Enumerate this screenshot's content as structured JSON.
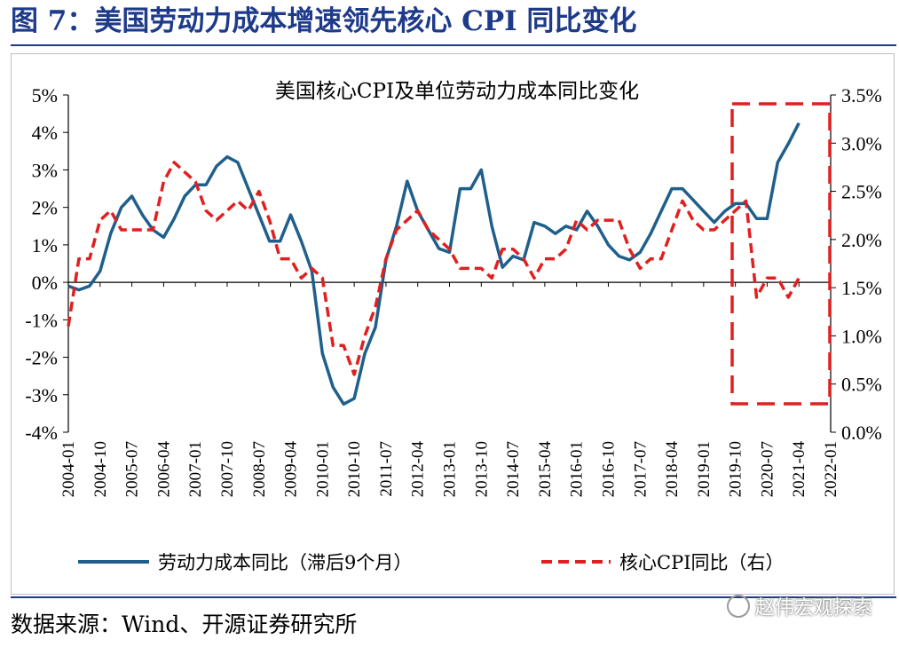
{
  "figure": {
    "title": "图 7：美国劳动力成本增速领先核心 CPI 同比变化",
    "source": "数据来源：Wind、开源证券研究所",
    "watermark": "赵伟宏观探索"
  },
  "chart_data": {
    "type": "line",
    "title": "美国核心CPI及单位劳动力成本同比变化",
    "x_tick_labels": [
      "2004-01",
      "2004-10",
      "2005-07",
      "2006-04",
      "2007-01",
      "2007-10",
      "2008-07",
      "2009-04",
      "2010-01",
      "2010-10",
      "2011-07",
      "2012-04",
      "2013-01",
      "2013-10",
      "2014-07",
      "2015-04",
      "2016-01",
      "2016-10",
      "2017-07",
      "2018-04",
      "2019-01",
      "2019-10",
      "2020-07",
      "2021-04",
      "2022-01"
    ],
    "left_axis": {
      "ylim": [
        -4,
        5
      ],
      "ticks": [
        "-4%",
        "-3%",
        "-2%",
        "-1%",
        "0%",
        "1%",
        "2%",
        "3%",
        "4%",
        "5%"
      ]
    },
    "right_axis": {
      "ylim": [
        0.0,
        3.5
      ],
      "ticks": [
        "0.0%",
        "0.5%",
        "1.0%",
        "1.5%",
        "2.0%",
        "2.5%",
        "3.0%",
        "3.5%"
      ]
    },
    "legend_placement": "bottom",
    "annotation": "red dashed box around 2019-10 to 2021-04",
    "series": [
      {
        "name": "劳动力成本同比（滞后9个月）",
        "axis": "left",
        "color": "#1f5f8b",
        "style": "solid",
        "x": [
          "2004-01",
          "2004-04",
          "2004-07",
          "2004-10",
          "2005-01",
          "2005-04",
          "2005-07",
          "2005-10",
          "2006-01",
          "2006-04",
          "2006-07",
          "2006-10",
          "2007-01",
          "2007-04",
          "2007-07",
          "2007-10",
          "2008-01",
          "2008-04",
          "2008-07",
          "2008-10",
          "2009-01",
          "2009-04",
          "2009-07",
          "2009-10",
          "2010-01",
          "2010-04",
          "2010-07",
          "2010-10",
          "2011-01",
          "2011-04",
          "2011-07",
          "2011-10",
          "2012-01",
          "2012-04",
          "2012-07",
          "2012-10",
          "2013-01",
          "2013-04",
          "2013-07",
          "2013-10",
          "2014-01",
          "2014-04",
          "2014-07",
          "2014-10",
          "2015-01",
          "2015-04",
          "2015-07",
          "2015-10",
          "2016-01",
          "2016-04",
          "2016-07",
          "2016-10",
          "2017-01",
          "2017-04",
          "2017-07",
          "2017-10",
          "2018-01",
          "2018-04",
          "2018-07",
          "2018-10",
          "2019-01",
          "2019-04",
          "2019-07",
          "2019-10",
          "2020-01",
          "2020-04",
          "2020-07",
          "2020-10",
          "2021-01",
          "2021-04"
        ],
        "values": [
          -0.1,
          -0.2,
          -0.1,
          0.3,
          1.3,
          2.0,
          2.3,
          1.8,
          1.4,
          1.2,
          1.7,
          2.3,
          2.6,
          2.6,
          3.1,
          3.35,
          3.2,
          2.5,
          1.8,
          1.1,
          1.1,
          1.8,
          1.1,
          0.3,
          -1.9,
          -2.8,
          -3.25,
          -3.1,
          -1.9,
          -1.2,
          0.6,
          1.5,
          2.7,
          1.9,
          1.4,
          0.9,
          0.8,
          2.5,
          2.5,
          3.0,
          1.5,
          0.4,
          0.7,
          0.6,
          1.6,
          1.5,
          1.3,
          1.5,
          1.4,
          1.9,
          1.5,
          1.0,
          0.7,
          0.6,
          0.8,
          1.3,
          1.9,
          2.5,
          2.5,
          2.2,
          1.9,
          1.6,
          1.9,
          2.1,
          2.1,
          1.7,
          1.7,
          3.2,
          3.7,
          4.25
        ]
      },
      {
        "name": "核心CPI同比（右）",
        "axis": "right",
        "color": "#e02020",
        "style": "dashed",
        "x": [
          "2004-01",
          "2004-04",
          "2004-07",
          "2004-10",
          "2005-01",
          "2005-04",
          "2005-07",
          "2005-10",
          "2006-01",
          "2006-04",
          "2006-07",
          "2006-10",
          "2007-01",
          "2007-04",
          "2007-07",
          "2007-10",
          "2008-01",
          "2008-04",
          "2008-07",
          "2008-10",
          "2009-01",
          "2009-04",
          "2009-07",
          "2009-10",
          "2010-01",
          "2010-04",
          "2010-07",
          "2010-10",
          "2011-01",
          "2011-04",
          "2011-07",
          "2011-10",
          "2012-01",
          "2012-04",
          "2012-07",
          "2012-10",
          "2013-01",
          "2013-04",
          "2013-07",
          "2013-10",
          "2014-01",
          "2014-04",
          "2014-07",
          "2014-10",
          "2015-01",
          "2015-04",
          "2015-07",
          "2015-10",
          "2016-01",
          "2016-04",
          "2016-07",
          "2016-10",
          "2017-01",
          "2017-04",
          "2017-07",
          "2017-10",
          "2018-01",
          "2018-04",
          "2018-07",
          "2018-10",
          "2019-01",
          "2019-04",
          "2019-07",
          "2019-10",
          "2020-01",
          "2020-04",
          "2020-07",
          "2020-10",
          "2021-01",
          "2021-04"
        ],
        "values": [
          1.1,
          1.8,
          1.8,
          2.2,
          2.3,
          2.1,
          2.1,
          2.1,
          2.1,
          2.6,
          2.8,
          2.7,
          2.6,
          2.3,
          2.2,
          2.3,
          2.4,
          2.3,
          2.5,
          2.2,
          1.8,
          1.8,
          1.6,
          1.7,
          1.6,
          0.9,
          0.9,
          0.6,
          1.0,
          1.3,
          1.8,
          2.1,
          2.2,
          2.3,
          2.1,
          2.0,
          1.9,
          1.7,
          1.7,
          1.7,
          1.6,
          1.9,
          1.9,
          1.8,
          1.6,
          1.8,
          1.8,
          1.9,
          2.2,
          2.1,
          2.2,
          2.2,
          2.2,
          1.9,
          1.7,
          1.8,
          1.8,
          2.1,
          2.4,
          2.2,
          2.1,
          2.1,
          2.2,
          2.3,
          2.4,
          1.4,
          1.6,
          1.6,
          1.4,
          1.6
        ]
      }
    ]
  }
}
